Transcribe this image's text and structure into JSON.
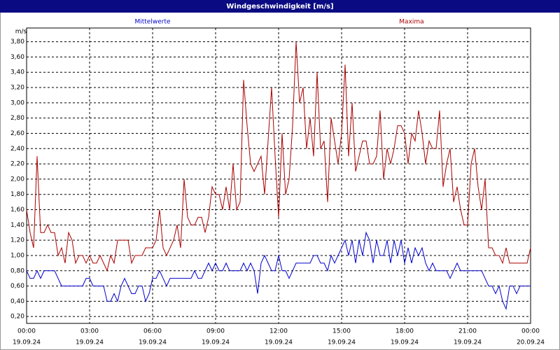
{
  "chart_data": {
    "type": "line",
    "title": "Windgeschwindigkeit [m/s]",
    "y_unit": "m/s",
    "x": [
      0,
      10,
      20,
      30,
      40,
      50,
      60,
      70,
      80,
      90,
      100,
      110,
      120,
      130,
      140,
      150,
      160,
      170,
      180,
      190,
      200,
      210,
      220,
      230,
      240,
      250,
      260,
      270,
      280,
      290,
      300,
      310,
      320,
      330,
      340,
      350,
      360,
      370,
      380,
      390,
      400,
      410,
      420,
      430,
      440,
      450,
      460,
      470,
      480,
      490,
      500,
      510,
      520,
      530,
      540,
      550,
      560,
      570,
      580,
      590,
      600,
      610,
      620,
      630,
      640,
      650,
      660,
      670,
      680,
      690,
      700,
      710,
      720,
      730,
      740,
      750,
      760,
      770,
      780,
      790,
      800,
      810,
      820,
      830,
      840,
      850,
      860,
      870,
      880,
      890,
      900,
      910,
      920,
      930,
      940,
      950,
      960,
      970,
      980,
      990,
      1000,
      1010,
      1020,
      1030,
      1040,
      1050,
      1060,
      1070,
      1080,
      1090,
      1100,
      1110,
      1120,
      1130,
      1140,
      1150,
      1160,
      1170,
      1180,
      1190,
      1200,
      1210,
      1220,
      1230,
      1240,
      1250,
      1260,
      1270,
      1280,
      1290,
      1300,
      1310,
      1320,
      1330,
      1340,
      1350,
      1360,
      1370,
      1380,
      1390,
      1400,
      1410,
      1420,
      1430,
      1440
    ],
    "series": [
      {
        "name": "Mittelwerte",
        "color": "#0000cc",
        "values": [
          0.8,
          0.7,
          0.7,
          0.8,
          0.7,
          0.8,
          0.8,
          0.8,
          0.8,
          0.7,
          0.6,
          0.6,
          0.6,
          0.6,
          0.6,
          0.6,
          0.6,
          0.7,
          0.7,
          0.6,
          0.6,
          0.6,
          0.6,
          0.4,
          0.4,
          0.5,
          0.4,
          0.6,
          0.7,
          0.6,
          0.5,
          0.5,
          0.6,
          0.6,
          0.4,
          0.5,
          0.7,
          0.7,
          0.8,
          0.7,
          0.6,
          0.7,
          0.7,
          0.7,
          0.7,
          0.7,
          0.7,
          0.7,
          0.8,
          0.7,
          0.7,
          0.8,
          0.9,
          0.8,
          0.9,
          0.8,
          0.8,
          0.9,
          0.8,
          0.8,
          0.8,
          0.8,
          0.9,
          0.8,
          0.9,
          0.8,
          0.5,
          0.9,
          1.0,
          0.9,
          0.8,
          0.8,
          1.0,
          0.8,
          0.8,
          0.7,
          0.8,
          0.9,
          0.9,
          0.9,
          0.9,
          0.9,
          1.0,
          1.0,
          0.9,
          0.9,
          0.8,
          1.0,
          0.9,
          1.0,
          1.1,
          1.2,
          1.0,
          1.2,
          0.9,
          1.2,
          1.0,
          1.3,
          1.2,
          0.9,
          1.2,
          1.0,
          1.0,
          1.2,
          0.9,
          1.2,
          1.0,
          1.2,
          0.9,
          1.1,
          0.9,
          1.1,
          1.0,
          1.1,
          0.9,
          0.8,
          0.9,
          0.8,
          0.8,
          0.8,
          0.8,
          0.7,
          0.8,
          0.9,
          0.8,
          0.8,
          0.8,
          0.8,
          0.8,
          0.8,
          0.8,
          0.7,
          0.6,
          0.6,
          0.5,
          0.6,
          0.4,
          0.3,
          0.6,
          0.6,
          0.5,
          0.6,
          0.6,
          0.6,
          0.6
        ]
      },
      {
        "name": "Maxima",
        "color": "#aa0000",
        "values": [
          1.6,
          1.3,
          1.1,
          2.3,
          1.3,
          1.3,
          1.4,
          1.3,
          1.3,
          1.0,
          1.1,
          0.9,
          1.3,
          1.2,
          0.9,
          1.0,
          1.0,
          0.9,
          1.0,
          0.9,
          0.9,
          1.0,
          0.9,
          0.8,
          1.0,
          0.9,
          1.2,
          1.2,
          1.2,
          1.2,
          0.9,
          1.0,
          1.0,
          1.0,
          1.1,
          1.1,
          1.1,
          1.2,
          1.6,
          1.1,
          1.0,
          1.1,
          1.2,
          1.4,
          1.1,
          2.0,
          1.5,
          1.4,
          1.4,
          1.5,
          1.5,
          1.3,
          1.5,
          1.9,
          1.8,
          1.8,
          1.6,
          1.9,
          1.6,
          2.2,
          1.6,
          1.7,
          3.3,
          2.7,
          2.2,
          2.1,
          2.2,
          2.3,
          1.8,
          2.5,
          3.2,
          2.3,
          1.5,
          2.6,
          1.8,
          2.0,
          2.7,
          3.8,
          3.0,
          3.2,
          2.4,
          2.8,
          2.3,
          3.4,
          2.4,
          2.5,
          1.7,
          2.8,
          2.5,
          2.2,
          2.6,
          3.5,
          2.3,
          3.0,
          2.1,
          2.3,
          2.5,
          2.5,
          2.2,
          2.2,
          2.3,
          2.9,
          2.0,
          2.4,
          2.2,
          2.4,
          2.7,
          2.7,
          2.6,
          2.2,
          2.6,
          2.5,
          2.9,
          2.6,
          2.2,
          2.5,
          2.4,
          2.4,
          2.9,
          1.9,
          2.2,
          2.4,
          1.7,
          1.9,
          1.6,
          1.4,
          1.4,
          2.2,
          2.4,
          1.9,
          1.6,
          2.0,
          1.1,
          1.1,
          1.0,
          1.0,
          0.9,
          1.1,
          0.9,
          0.9,
          0.9,
          0.9,
          0.9,
          0.9,
          1.1
        ]
      }
    ],
    "xlim": [
      0,
      1440
    ],
    "xticks": [
      {
        "value": 0,
        "label": "00:00",
        "date": "19.09.24"
      },
      {
        "value": 180,
        "label": "03:00",
        "date": "19.09.24"
      },
      {
        "value": 360,
        "label": "06:00",
        "date": "19.09.24"
      },
      {
        "value": 540,
        "label": "09:00",
        "date": "19.09.24"
      },
      {
        "value": 720,
        "label": "12:00",
        "date": "19.09.24"
      },
      {
        "value": 900,
        "label": "15:00",
        "date": "19.09.24"
      },
      {
        "value": 1080,
        "label": "18:00",
        "date": "19.09.24"
      },
      {
        "value": 1260,
        "label": "21:00",
        "date": "19.09.24"
      },
      {
        "value": 1440,
        "label": "00:00",
        "date": "20.09.24"
      }
    ],
    "ylim": [
      0.11,
      3.98
    ],
    "yticks": [
      {
        "value": 0.2,
        "label": "0,20"
      },
      {
        "value": 0.4,
        "label": "0,40"
      },
      {
        "value": 0.6,
        "label": "0,60"
      },
      {
        "value": 0.8,
        "label": "0,80"
      },
      {
        "value": 1.0,
        "label": "1,00"
      },
      {
        "value": 1.2,
        "label": "1,20"
      },
      {
        "value": 1.4,
        "label": "1,40"
      },
      {
        "value": 1.6,
        "label": "1,60"
      },
      {
        "value": 1.8,
        "label": "1,80"
      },
      {
        "value": 2.0,
        "label": "2,00"
      },
      {
        "value": 2.2,
        "label": "2,20"
      },
      {
        "value": 2.4,
        "label": "2,40"
      },
      {
        "value": 2.6,
        "label": "2,60"
      },
      {
        "value": 2.8,
        "label": "2,80"
      },
      {
        "value": 3.0,
        "label": "3,00"
      },
      {
        "value": 3.2,
        "label": "3,20"
      },
      {
        "value": 3.4,
        "label": "3,40"
      },
      {
        "value": 3.6,
        "label": "3,60"
      },
      {
        "value": 3.8,
        "label": "3,80"
      }
    ],
    "grid": true
  }
}
